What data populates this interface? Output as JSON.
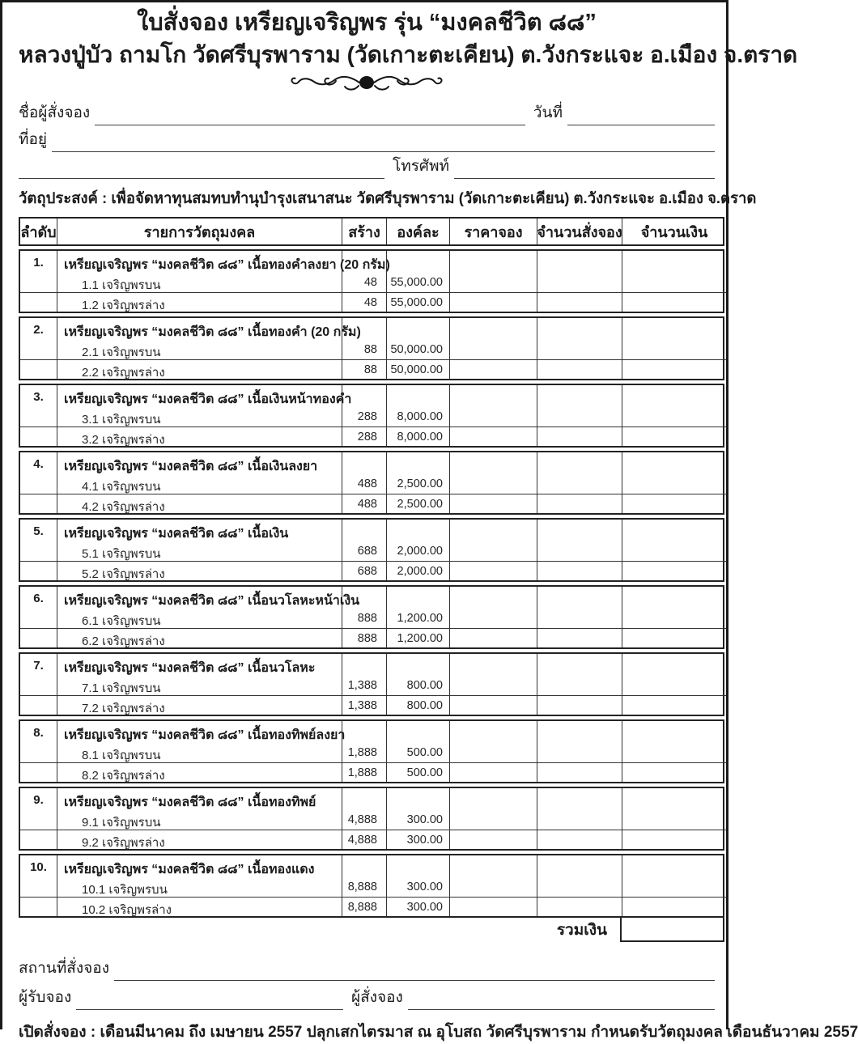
{
  "header": {
    "title_line1": "ใบสั่งจอง เหรียญเจริญพร รุ่น “มงคลชีวิต ๘๘”",
    "title_line2": "หลวงปู่บัว ถามโก  วัดศรีบุรพาราม (วัดเกาะตะเคียน) ต.วังกระแจะ อ.เมือง จ.ตราด",
    "ornament_icon": "scroll-flourish-divider"
  },
  "form_fields": {
    "orderer_name_label": "ชื่อผู้สั่งจอง",
    "orderer_name_value": "",
    "date_label": "วันที่",
    "date_value": "",
    "address_label": "ที่อยู่",
    "address_value": "",
    "phone_label": "โทรศัพท์",
    "phone_value": ""
  },
  "purpose": "วัตถุประสงค์ : เพื่อจัดหาทุนสมทบทำนุบำรุงเสนาสนะ วัดศรีบุรพาราม (วัดเกาะตะเคียน) ต.วังกระแจะ อ.เมือง จ.ตราด",
  "table": {
    "columns": [
      "ลำดับ",
      "รายการวัตถุมงคล",
      "สร้าง",
      "องค์ละ",
      "ราคาจอง",
      "จำนวนสั่งจอง",
      "จำนวนเงิน"
    ],
    "items": [
      {
        "no": "1.",
        "name": "เหรียญเจริญพร “มงคลชีวิต ๘๘” เนื้อทองคำลงยา (20 กรัม)",
        "subs": [
          {
            "label": "1.1 เจริญพรบน",
            "made": "48",
            "price": "55,000.00"
          },
          {
            "label": "1.2 เจริญพรล่าง",
            "made": "48",
            "price": "55,000.00"
          }
        ]
      },
      {
        "no": "2.",
        "name": "เหรียญเจริญพร “มงคลชีวิต ๘๘” เนื้อทองคำ (20 กรัม)",
        "subs": [
          {
            "label": "2.1 เจริญพรบน",
            "made": "88",
            "price": "50,000.00"
          },
          {
            "label": "2.2 เจริญพรล่าง",
            "made": "88",
            "price": "50,000.00"
          }
        ]
      },
      {
        "no": "3.",
        "name": "เหรียญเจริญพร “มงคลชีวิต ๘๘” เนื้อเงินหน้าทองคำ",
        "subs": [
          {
            "label": "3.1 เจริญพรบน",
            "made": "288",
            "price": "8,000.00"
          },
          {
            "label": "3.2 เจริญพรล่าง",
            "made": "288",
            "price": "8,000.00"
          }
        ]
      },
      {
        "no": "4.",
        "name": "เหรียญเจริญพร “มงคลชีวิต ๘๘” เนื้อเงินลงยา",
        "subs": [
          {
            "label": "4.1 เจริญพรบน",
            "made": "488",
            "price": "2,500.00"
          },
          {
            "label": "4.2 เจริญพรล่าง",
            "made": "488",
            "price": "2,500.00"
          }
        ]
      },
      {
        "no": "5.",
        "name": "เหรียญเจริญพร “มงคลชีวิต ๘๘” เนื้อเงิน",
        "subs": [
          {
            "label": "5.1 เจริญพรบน",
            "made": "688",
            "price": "2,000.00"
          },
          {
            "label": "5.2 เจริญพรล่าง",
            "made": "688",
            "price": "2,000.00"
          }
        ]
      },
      {
        "no": "6.",
        "name": "เหรียญเจริญพร “มงคลชีวิต ๘๘” เนื้อนวโลหะหน้าเงิน",
        "subs": [
          {
            "label": "6.1 เจริญพรบน",
            "made": "888",
            "price": "1,200.00"
          },
          {
            "label": "6.2 เจริญพรล่าง",
            "made": "888",
            "price": "1,200.00"
          }
        ]
      },
      {
        "no": "7.",
        "name": "เหรียญเจริญพร “มงคลชีวิต ๘๘” เนื้อนวโลหะ",
        "subs": [
          {
            "label": "7.1 เจริญพรบน",
            "made": "1,388",
            "price": "800.00"
          },
          {
            "label": "7.2 เจริญพรล่าง",
            "made": "1,388",
            "price": "800.00"
          }
        ]
      },
      {
        "no": "8.",
        "name": "เหรียญเจริญพร “มงคลชีวิต ๘๘” เนื้อทองทิพย์ลงยา",
        "subs": [
          {
            "label": "8.1 เจริญพรบน",
            "made": "1,888",
            "price": "500.00"
          },
          {
            "label": "8.2 เจริญพรล่าง",
            "made": "1,888",
            "price": "500.00"
          }
        ]
      },
      {
        "no": "9.",
        "name": "เหรียญเจริญพร “มงคลชีวิต ๘๘” เนื้อทองทิพย์",
        "subs": [
          {
            "label": "9.1 เจริญพรบน",
            "made": "4,888",
            "price": "300.00"
          },
          {
            "label": "9.2 เจริญพรล่าง",
            "made": "4,888",
            "price": "300.00"
          }
        ]
      },
      {
        "no": "10.",
        "name": "เหรียญเจริญพร “มงคลชีวิต ๘๘” เนื้อทองแดง",
        "subs": [
          {
            "label": "10.1 เจริญพรบน",
            "made": "8,888",
            "price": "300.00"
          },
          {
            "label": "10.2 เจริญพรล่าง",
            "made": "8,888",
            "price": "300.00"
          }
        ]
      }
    ],
    "total_label": "รวมเงิน",
    "total_value": ""
  },
  "footer": {
    "order_place_label": "สถานที่สั่งจอง",
    "order_place_value": "",
    "receiver_label": "ผู้รับจอง",
    "receiver_value": "",
    "orderer_label": "ผู้สั่งจอง",
    "orderer_value": "",
    "note": "เปิดสั่งจอง : เดือนมีนาคม ถึง เมษายน 2557 ปลุกเสกไตรมาส ณ อุโบสถ วัดศรีบุรพาราม กำหนดรับวัตถุมงคล เดือนธันวาคม 2557"
  },
  "colors": {
    "ink": "#1b1b1b",
    "line": "#3c3c3c",
    "border": "#232323"
  }
}
